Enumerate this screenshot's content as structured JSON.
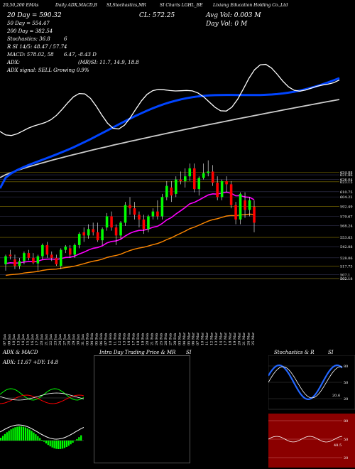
{
  "header": {
    "line1": [
      "20,50,200 EMAs",
      "Daily ADX,MACD,B",
      "SI,Stochastics,MR",
      "SI Charts LGHL_BE",
      "Lixiang Education Holding Co.,Ltd"
    ],
    "ema20": "20 Day = 590.32",
    "ema50": "50 Day = 554.47",
    "ema200": "200 Day = 382.54",
    "stoch": "Stochastics: 36.8",
    "stoch_k": "6",
    "rsi": "R    SI 14/5: 48.47 / 57.74",
    "macd": "MACD: 578.02, 58",
    "macd2": "6.47, -8.43 D",
    "adx": "ADX:",
    "mrsi": "(MR)SI: 11.7, 14.9, 18.8",
    "adx_signal": "ADX  signal: SELL Growing 0.9%",
    "close": "CL: 572.25",
    "avgvol": "Avg Vol: 0.003  M",
    "dayvol": "Day Vol: 0   M"
  },
  "colors": {
    "up": "#00ff00",
    "down": "#ff0000",
    "ema20": "#ffffff",
    "ema50": "#0044ff",
    "ema200": "#ff8800",
    "bb": "#ff00ff",
    "price": "#ffffff"
  },
  "chart_data": [
    {
      "type": "candlestick",
      "id": "price",
      "ylim": [
        495,
        655
      ],
      "levels": [
        {
          "value": 634.88,
          "label": "634.88"
        },
        {
          "value": 631.86,
          "label": "631.86"
        },
        {
          "value": 626.04,
          "label": "626.04"
        },
        {
          "value": 623.15,
          "label": "623.15"
        },
        {
          "value": 610.75,
          "label": "610.75"
        },
        {
          "value": 604.22,
          "label": "604.22"
        },
        {
          "value": 592.49,
          "label": "592.49"
        },
        {
          "value": 579.67,
          "label": "579.67"
        },
        {
          "value": 568.24,
          "label": "568.24"
        },
        {
          "value": 553.63,
          "label": "553.63"
        },
        {
          "value": 542.08,
          "label": "542.08"
        },
        {
          "value": 528.06,
          "label": "528.06"
        },
        {
          "value": 517.73,
          "label": "517.73"
        },
        {
          "value": 507.1,
          "label": "507.1"
        },
        {
          "value": 502.1,
          "label": "502.1"
        },
        {
          "value": 502.18,
          "label": "502.18"
        }
      ],
      "dates": [
        "07 Jan",
        "09 Jan",
        "10 Jan",
        "13 Jan",
        "14 Jan",
        "15 Jan",
        "16 Jan",
        "17 Jan",
        "20 Jan",
        "21 Jan",
        "22 Jan",
        "23 Jan",
        "24 Jan",
        "27 Jan",
        "28 Jan",
        "29 Jan",
        "30 Jan",
        "31 Jan",
        "03 Feb",
        "04 Feb",
        "05 Feb",
        "06 Feb",
        "07 Feb",
        "10 Feb",
        "11 Feb",
        "12 Feb",
        "13 Feb",
        "14 Feb",
        "17 Feb",
        "18 Feb",
        "19 Feb",
        "20 Feb",
        "21 Feb",
        "24 Feb",
        "25 Feb",
        "26 Feb",
        "27 Feb",
        "28 Feb",
        "03 Mar",
        "04 Mar",
        "05 Mar",
        "06 Mar",
        "07 Mar",
        "10 Mar",
        "11 Mar",
        "12 Mar",
        "13 Mar",
        "14 Mar",
        "17 Mar",
        "18 Mar",
        "19 Mar",
        "20 Mar",
        "21 Mar",
        "24 Mar",
        "25 Mar"
      ],
      "candles": [
        [
          520,
          532,
          512,
          530
        ],
        [
          532,
          538,
          526,
          530
        ],
        [
          526,
          532,
          514,
          518
        ],
        [
          518,
          528,
          514,
          524
        ],
        [
          524,
          536,
          520,
          534
        ],
        [
          534,
          538,
          525,
          528
        ],
        [
          528,
          534,
          520,
          522
        ],
        [
          521,
          532,
          512,
          530
        ],
        [
          530,
          546,
          526,
          544
        ],
        [
          544,
          548,
          528,
          532
        ],
        [
          532,
          536,
          524,
          528
        ],
        [
          528,
          532,
          518,
          520
        ],
        [
          518,
          540,
          514,
          538
        ],
        [
          538,
          544,
          534,
          542
        ],
        [
          540,
          544,
          528,
          532
        ],
        [
          532,
          546,
          528,
          544
        ],
        [
          544,
          560,
          540,
          558
        ],
        [
          560,
          566,
          548,
          556
        ],
        [
          556,
          570,
          552,
          564
        ],
        [
          564,
          572,
          556,
          560
        ],
        [
          560,
          572,
          548,
          550
        ],
        [
          550,
          566,
          544,
          564
        ],
        [
          566,
          584,
          562,
          580
        ],
        [
          580,
          586,
          562,
          566
        ],
        [
          566,
          570,
          544,
          556
        ],
        [
          556,
          574,
          552,
          572
        ],
        [
          572,
          598,
          568,
          594
        ],
        [
          594,
          604,
          582,
          590
        ],
        [
          590,
          598,
          576,
          582
        ],
        [
          582,
          586,
          566,
          576
        ],
        [
          576,
          582,
          558,
          564
        ],
        [
          564,
          582,
          560,
          580
        ],
        [
          580,
          590,
          576,
          586
        ],
        [
          586,
          600,
          576,
          580
        ],
        [
          580,
          608,
          576,
          604
        ],
        [
          604,
          624,
          600,
          618
        ],
        [
          616,
          624,
          598,
          606
        ],
        [
          608,
          630,
          604,
          626
        ],
        [
          626,
          636,
          620,
          624
        ],
        [
          624,
          640,
          616,
          630
        ],
        [
          630,
          646,
          624,
          640
        ],
        [
          640,
          646,
          610,
          614
        ],
        [
          614,
          630,
          606,
          628
        ],
        [
          628,
          646,
          626,
          634
        ],
        [
          634,
          650,
          630,
          636
        ],
        [
          636,
          644,
          618,
          622
        ],
        [
          622,
          630,
          600,
          604
        ],
        [
          604,
          626,
          600,
          624
        ],
        [
          624,
          630,
          610,
          620
        ],
        [
          620,
          624,
          590,
          594
        ],
        [
          594,
          598,
          570,
          576
        ],
        [
          576,
          610,
          570,
          608
        ],
        [
          600,
          610,
          578,
          588
        ],
        [
          588,
          604,
          580,
          600
        ],
        [
          592,
          600,
          560,
          572
        ]
      ]
    },
    {
      "type": "line",
      "id": "adx_macd",
      "title": "ADX & MACD",
      "legend": "ADX: 11.67 +DY: 14.8"
    },
    {
      "type": "candlestick",
      "id": "intraday",
      "title": "Intra Day Trading Price & MR",
      "title_suffix": "SI",
      "values": []
    },
    {
      "type": "line",
      "id": "stoch_rsi",
      "title": "Stochastics & R",
      "title_suffix": "SI",
      "ticks": [
        "80",
        "50",
        "20"
      ],
      "label_20": "20.6",
      "ticks_rsi": [
        "80",
        "50",
        "20"
      ],
      "label_rsi": "48.5"
    }
  ]
}
